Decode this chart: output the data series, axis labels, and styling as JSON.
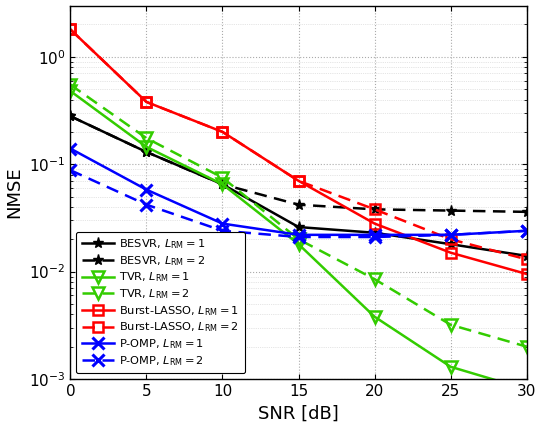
{
  "snr": [
    0,
    5,
    10,
    15,
    20,
    25,
    30
  ],
  "besvr_1": [
    0.28,
    0.13,
    0.065,
    0.026,
    0.023,
    0.018,
    0.014
  ],
  "besvr_2": [
    0.28,
    0.13,
    0.065,
    0.042,
    0.038,
    0.037,
    0.036
  ],
  "tvr_1": [
    0.48,
    0.145,
    0.065,
    0.018,
    0.0038,
    0.0013,
    0.0008
  ],
  "tvr_2": [
    0.55,
    0.175,
    0.075,
    0.02,
    0.0085,
    0.0032,
    0.002
  ],
  "burst_lasso_1": [
    1.8,
    0.38,
    0.2,
    0.07,
    0.028,
    0.015,
    0.0095
  ],
  "burst_lasso_2": [
    1.8,
    0.38,
    0.2,
    0.07,
    0.038,
    0.02,
    0.013
  ],
  "pomp_1": [
    0.14,
    0.058,
    0.028,
    0.022,
    0.022,
    0.022,
    0.024
  ],
  "pomp_2": [
    0.088,
    0.042,
    0.024,
    0.021,
    0.021,
    0.022,
    0.024
  ],
  "colors": {
    "besvr": "#000000",
    "tvr": "#33cc00",
    "burst_lasso": "#ff0000",
    "pomp": "#0000ff"
  },
  "ylabel": "NMSE",
  "xlabel": "SNR [dB]",
  "ylim_bottom": 0.001,
  "ylim_top": 3.0,
  "xlim_left": 0,
  "xlim_right": 30
}
